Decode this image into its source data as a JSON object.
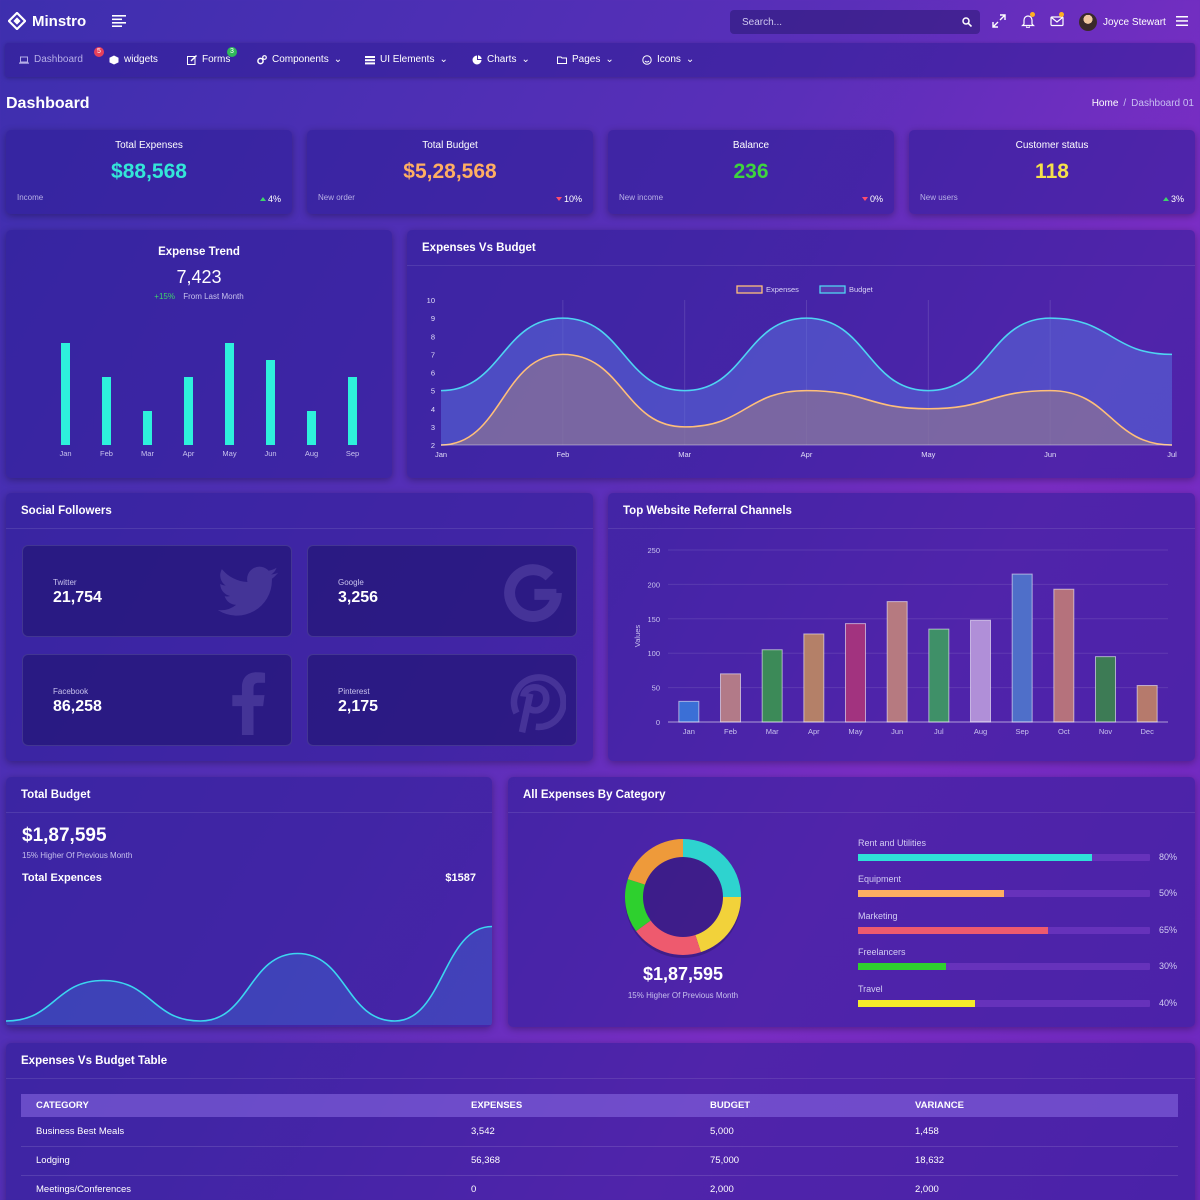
{
  "app": {
    "name": "Minstro"
  },
  "header": {
    "search_placeholder": "Search...",
    "user_name": "Joyce Stewart"
  },
  "nav": {
    "items": [
      {
        "label": "Dashboard",
        "badge": "5"
      },
      {
        "label": "widgets"
      },
      {
        "label": "Forms",
        "badge": "3"
      },
      {
        "label": "Components"
      },
      {
        "label": "UI Elements"
      },
      {
        "label": "Charts"
      },
      {
        "label": "Pages"
      },
      {
        "label": "Icons"
      }
    ]
  },
  "page": {
    "title": "Dashboard",
    "breadcrumb": [
      "Home",
      "/",
      "Dashboard 01"
    ]
  },
  "stats": [
    {
      "title": "Total Expenses",
      "value": "$88,568",
      "sub": "Income",
      "change": "4%",
      "direction": "up",
      "color": "#33e6d8"
    },
    {
      "title": "Total Budget",
      "value": "$5,28,568",
      "sub": "New order",
      "change": "10%",
      "direction": "down",
      "color": "#ffae62"
    },
    {
      "title": "Balance",
      "value": "236",
      "sub": "New income",
      "change": "0%",
      "direction": "down",
      "color": "#3ed43e"
    },
    {
      "title": "Customer status",
      "value": "118",
      "sub": "New users",
      "change": "3%",
      "direction": "up",
      "color": "#f5e14a"
    }
  ],
  "expense_trend": {
    "title": "Expense Trend",
    "value": "7,423",
    "change": "+15%",
    "change_label": "From Last Month",
    "chart_data": {
      "type": "bar",
      "categories": [
        "Jan",
        "Feb",
        "Mar",
        "Apr",
        "May",
        "Jun",
        "Aug",
        "Sep"
      ],
      "values": [
        6,
        4,
        2,
        4,
        6,
        5,
        2,
        4
      ],
      "ylim": [
        0,
        6
      ],
      "color": "#2ef0dc"
    }
  },
  "expenses_vs_budget": {
    "title": "Expenses Vs Budget",
    "chart_data": {
      "type": "area",
      "categories": [
        "Jan",
        "Feb",
        "Mar",
        "Apr",
        "May",
        "Jun",
        "Jul"
      ],
      "yticks": [
        "10",
        "9",
        "8",
        "7",
        "6",
        "5",
        "4",
        "3",
        "2"
      ],
      "ylim": [
        2,
        10
      ],
      "legend": "top-center",
      "series": [
        {
          "name": "Expenses",
          "values": [
            2,
            7,
            3,
            5,
            4,
            5,
            2
          ],
          "color": "#ffbf7a"
        },
        {
          "name": "Budget",
          "values": [
            5,
            9,
            5,
            9,
            5,
            9,
            7
          ],
          "color": "#4fd4f2"
        }
      ]
    }
  },
  "social": {
    "title": "Social Followers",
    "tiles": [
      {
        "label": "Twitter",
        "value": "21,754",
        "icon": "twitter-icon"
      },
      {
        "label": "Google",
        "value": "3,256",
        "icon": "google-icon"
      },
      {
        "label": "Facebook",
        "value": "86,258",
        "icon": "facebook-icon"
      },
      {
        "label": "Pinterest",
        "value": "2,175",
        "icon": "pinterest-icon"
      }
    ]
  },
  "referral": {
    "title": "Top Website Referral Channels",
    "chart_data": {
      "type": "bar",
      "categories": [
        "Jan",
        "Feb",
        "Mar",
        "Apr",
        "May",
        "Jun",
        "Jul",
        "Aug",
        "Sep",
        "Oct",
        "Nov",
        "Dec"
      ],
      "values": [
        30,
        70,
        105,
        128,
        143,
        175,
        135,
        148,
        215,
        193,
        95,
        53
      ],
      "yticks": [
        "250",
        "200",
        "150",
        "100",
        "50",
        "0"
      ],
      "ylim": [
        0,
        250
      ],
      "ylabel": "Values",
      "colors": [
        "#3b6fd6",
        "#b27a88",
        "#3c8a58",
        "#b48068",
        "#a2337f",
        "#b67a80",
        "#3f9068",
        "#b08fd8",
        "#4f6fc9",
        "#b5727c",
        "#3d7b55",
        "#b67a6c"
      ]
    }
  },
  "total_budget": {
    "title": "Total Budget",
    "value": "$1,87,595",
    "sub": "15% Higher Of Previous Month",
    "expense_label": "Total Expences",
    "expense_value": "$1587",
    "chart_data": {
      "type": "area",
      "values": [
        0,
        3,
        0,
        5,
        0,
        7
      ],
      "ylim": [
        0,
        8
      ],
      "color": "#3cd6f0"
    }
  },
  "category": {
    "title": "All Expenses By Category",
    "value": "$1,87,595",
    "sub": "15% Higher Of Previous Month",
    "donut": {
      "type": "pie",
      "values": [
        25,
        20,
        20,
        15,
        20
      ],
      "colors": [
        "#2ed3cf",
        "#f2d23a",
        "#ee5a6e",
        "#2ed02e",
        "#ee9a3a"
      ]
    },
    "bars": [
      {
        "label": "Rent and Utilities",
        "pct": "80%",
        "value": 80,
        "color": "#2fe0d8"
      },
      {
        "label": "Equipment",
        "pct": "50%",
        "value": 50,
        "color": "#ffae62"
      },
      {
        "label": "Marketing",
        "pct": "65%",
        "value": 65,
        "color": "#ee5a6e"
      },
      {
        "label": "Freelancers",
        "pct": "30%",
        "value": 30,
        "color": "#2fcf2f"
      },
      {
        "label": "Travel",
        "pct": "40%",
        "value": 40,
        "color": "#f5ea2a"
      }
    ]
  },
  "table": {
    "title": "Expenses Vs Budget Table",
    "headers": [
      "CATEGORY",
      "EXPENSES",
      "BUDGET",
      "VARIANCE"
    ],
    "rows": [
      [
        "Business Best Meals",
        "3,542",
        "5,000",
        "1,458"
      ],
      [
        "Lodging",
        "56,368",
        "75,000",
        "18,632"
      ],
      [
        "Meetings/Conferences",
        "0",
        "2,000",
        "2,000"
      ]
    ]
  }
}
